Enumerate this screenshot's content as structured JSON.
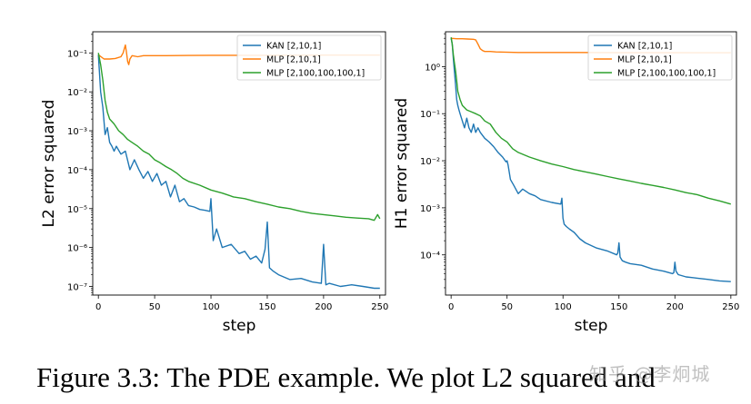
{
  "colors": {
    "kan": "#1f77b4",
    "mlp_small": "#ff7f0e",
    "mlp_large": "#2ca02c"
  },
  "caption": "Figure 3.3: The PDE example. We plot L2 squared and",
  "watermark": "知乎 @李炯城",
  "chart_data": [
    {
      "type": "line",
      "xlabel": "step",
      "ylabel": "L2 error squared",
      "yscale": "log",
      "xlim": [
        -5,
        255
      ],
      "ylim": [
        6e-08,
        0.35
      ],
      "xticks": [
        0,
        50,
        100,
        150,
        200,
        250
      ],
      "xtick_labels": [
        "0",
        "50",
        "100",
        "150",
        "200",
        "250"
      ],
      "yticks": [
        1e-07,
        1e-06,
        1e-05,
        0.0001,
        0.001,
        0.01,
        0.1
      ],
      "ytick_labels": [
        "10⁻⁷",
        "10⁻⁶",
        "10⁻⁵",
        "10⁻⁴",
        "10⁻³",
        "10⁻²",
        "10⁻¹"
      ],
      "legend_position": "upper right",
      "series": [
        {
          "name": "KAN [2,10,1]",
          "color": "#1f77b4",
          "x": [
            0,
            2,
            4,
            6,
            8,
            10,
            12,
            14,
            16,
            20,
            24,
            28,
            32,
            36,
            40,
            44,
            48,
            52,
            56,
            60,
            64,
            68,
            72,
            76,
            80,
            85,
            90,
            95,
            99,
            100,
            102,
            105,
            110,
            118,
            125,
            130,
            135,
            140,
            145,
            148,
            150,
            152,
            155,
            160,
            170,
            180,
            190,
            198,
            200,
            202,
            205,
            215,
            225,
            235,
            245,
            250
          ],
          "y": [
            0.09,
            0.01,
            0.004,
            0.0008,
            0.0012,
            0.0005,
            0.0004,
            0.0003,
            0.0004,
            0.00025,
            0.0003,
            0.0001,
            0.00018,
            0.0001,
            6e-05,
            9e-05,
            5e-05,
            8e-05,
            4e-05,
            5e-05,
            2e-05,
            4e-05,
            1.5e-05,
            1.8e-05,
            1.2e-05,
            1.1e-05,
            9.5e-06,
            9e-06,
            8.5e-06,
            1.8e-05,
            1.5e-06,
            3e-06,
            1e-06,
            1.2e-06,
            7e-07,
            8e-07,
            5e-07,
            6e-07,
            4e-07,
            9e-07,
            4.5e-06,
            3e-07,
            2.5e-07,
            2e-07,
            1.5e-07,
            1.6e-07,
            1.3e-07,
            1.2e-07,
            1.2e-06,
            1.1e-07,
            1.2e-07,
            1e-07,
            1.1e-07,
            1e-07,
            9e-08,
            9e-08
          ]
        },
        {
          "name": "MLP [2,10,1]",
          "color": "#ff7f0e",
          "x": [
            0,
            5,
            10,
            15,
            20,
            22,
            24,
            25,
            26,
            27,
            28,
            30,
            35,
            40,
            60,
            80,
            100,
            150,
            200,
            250
          ],
          "y": [
            0.09,
            0.07,
            0.07,
            0.072,
            0.08,
            0.1,
            0.16,
            0.1,
            0.06,
            0.05,
            0.07,
            0.085,
            0.08,
            0.085,
            0.085,
            0.086,
            0.087,
            0.087,
            0.088,
            0.088
          ]
        },
        {
          "name": "MLP [2,100,100,100,1]",
          "color": "#2ca02c",
          "x": [
            0,
            2,
            4,
            6,
            8,
            10,
            14,
            18,
            22,
            26,
            30,
            35,
            40,
            45,
            50,
            55,
            60,
            65,
            70,
            75,
            80,
            90,
            100,
            110,
            120,
            130,
            140,
            150,
            160,
            170,
            180,
            190,
            200,
            210,
            220,
            230,
            240,
            245,
            248,
            250
          ],
          "y": [
            0.1,
            0.05,
            0.02,
            0.006,
            0.003,
            0.002,
            0.0015,
            0.001,
            0.0008,
            0.0006,
            0.0005,
            0.0004,
            0.0003,
            0.00025,
            0.00018,
            0.00015,
            0.00012,
            0.0001,
            8e-05,
            6e-05,
            5e-05,
            4e-05,
            3e-05,
            2.5e-05,
            2e-05,
            1.8e-05,
            1.5e-05,
            1.3e-05,
            1.1e-05,
            1e-05,
            8.5e-06,
            7.5e-06,
            7e-06,
            6.5e-06,
            6e-06,
            5.7e-06,
            5.5e-06,
            5e-06,
            7e-06,
            5.5e-06
          ]
        }
      ]
    },
    {
      "type": "line",
      "xlabel": "step",
      "ylabel": "H1 error squared",
      "yscale": "log",
      "xlim": [
        -5,
        255
      ],
      "ylim": [
        1.4e-05,
        5.5
      ],
      "xticks": [
        0,
        50,
        100,
        150,
        200,
        250
      ],
      "xtick_labels": [
        "0",
        "50",
        "100",
        "150",
        "200",
        "250"
      ],
      "yticks": [
        0.0001,
        0.001,
        0.01,
        0.1,
        1
      ],
      "ytick_labels": [
        "10⁻⁴",
        "10⁻³",
        "10⁻²",
        "10⁻¹",
        "10⁰"
      ],
      "legend_position": "upper right",
      "series": [
        {
          "name": "KAN [2,10,1]",
          "color": "#1f77b4",
          "x": [
            0,
            1,
            2,
            3,
            4,
            5,
            6,
            7,
            8,
            10,
            12,
            14,
            16,
            18,
            20,
            22,
            24,
            26,
            28,
            30,
            34,
            38,
            42,
            46,
            49,
            50,
            51,
            53,
            56,
            60,
            64,
            70,
            75,
            80,
            90,
            98,
            99,
            100,
            101,
            103,
            106,
            110,
            115,
            120,
            130,
            140,
            148,
            149,
            150,
            151,
            153,
            156,
            160,
            170,
            180,
            190,
            198,
            199,
            200,
            201,
            203,
            210,
            220,
            230,
            240,
            250
          ],
          "y": [
            4,
            3,
            1.5,
            0.8,
            0.4,
            0.2,
            0.15,
            0.12,
            0.1,
            0.07,
            0.05,
            0.08,
            0.05,
            0.04,
            0.06,
            0.04,
            0.05,
            0.04,
            0.035,
            0.03,
            0.025,
            0.02,
            0.015,
            0.012,
            0.0095,
            0.01,
            0.008,
            0.004,
            0.003,
            0.002,
            0.0025,
            0.002,
            0.0018,
            0.0015,
            0.0013,
            0.0012,
            0.0016,
            0.0006,
            0.00045,
            0.0004,
            0.00035,
            0.0003,
            0.00022,
            0.00018,
            0.00014,
            0.00012,
            0.0001,
            0.00011,
            0.00018,
            9e-05,
            7.5e-05,
            7e-05,
            6.5e-05,
            6e-05,
            5e-05,
            4.5e-05,
            4e-05,
            4.2e-05,
            7e-05,
            4.5e-05,
            3.8e-05,
            3.4e-05,
            3.2e-05,
            3e-05,
            2.8e-05,
            2.7e-05
          ]
        },
        {
          "name": "MLP [2,10,1]",
          "color": "#ff7f0e",
          "x": [
            0,
            5,
            10,
            15,
            20,
            22,
            24,
            26,
            28,
            30,
            35,
            40,
            60,
            80,
            100,
            150,
            200,
            250
          ],
          "y": [
            4,
            3.9,
            3.9,
            3.85,
            3.8,
            3.7,
            3.0,
            2.4,
            2.2,
            2.1,
            2.1,
            2.05,
            2.0,
            2.0,
            2.0,
            1.98,
            1.98,
            1.97
          ]
        },
        {
          "name": "MLP [2,100,100,100,1]",
          "color": "#2ca02c",
          "x": [
            0,
            1,
            2,
            3,
            4,
            5,
            6,
            8,
            10,
            14,
            18,
            22,
            26,
            30,
            35,
            40,
            45,
            50,
            55,
            60,
            70,
            80,
            90,
            100,
            110,
            120,
            130,
            140,
            150,
            160,
            170,
            180,
            190,
            200,
            210,
            220,
            230,
            240,
            250
          ],
          "y": [
            4.2,
            3,
            1.8,
            1.2,
            0.8,
            0.5,
            0.3,
            0.2,
            0.15,
            0.12,
            0.11,
            0.1,
            0.09,
            0.07,
            0.06,
            0.04,
            0.03,
            0.025,
            0.018,
            0.015,
            0.012,
            0.01,
            0.0085,
            0.0075,
            0.0065,
            0.0058,
            0.0052,
            0.0046,
            0.0041,
            0.0037,
            0.0033,
            0.003,
            0.0027,
            0.0024,
            0.0021,
            0.0019,
            0.0016,
            0.0014,
            0.0012
          ]
        }
      ]
    }
  ]
}
